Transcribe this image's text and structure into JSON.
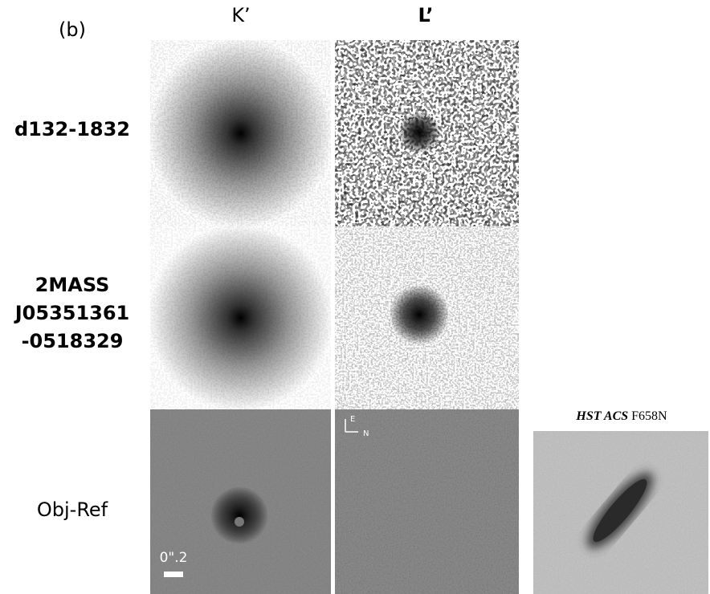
{
  "panel_label": "(b)",
  "columns": [
    "K’",
    "L’"
  ],
  "rows": [
    {
      "label": [
        "d132-1832"
      ]
    },
    {
      "label": [
        "2MASS",
        "J05351361",
        "-0518329"
      ]
    },
    {
      "label": [
        "Obj-Ref"
      ]
    }
  ],
  "scale_bar": "0\".2",
  "compass": {
    "east": "E",
    "north": "N"
  },
  "hst_panel": {
    "title_italic": "HST ACS",
    "title_rest": "F658N"
  }
}
